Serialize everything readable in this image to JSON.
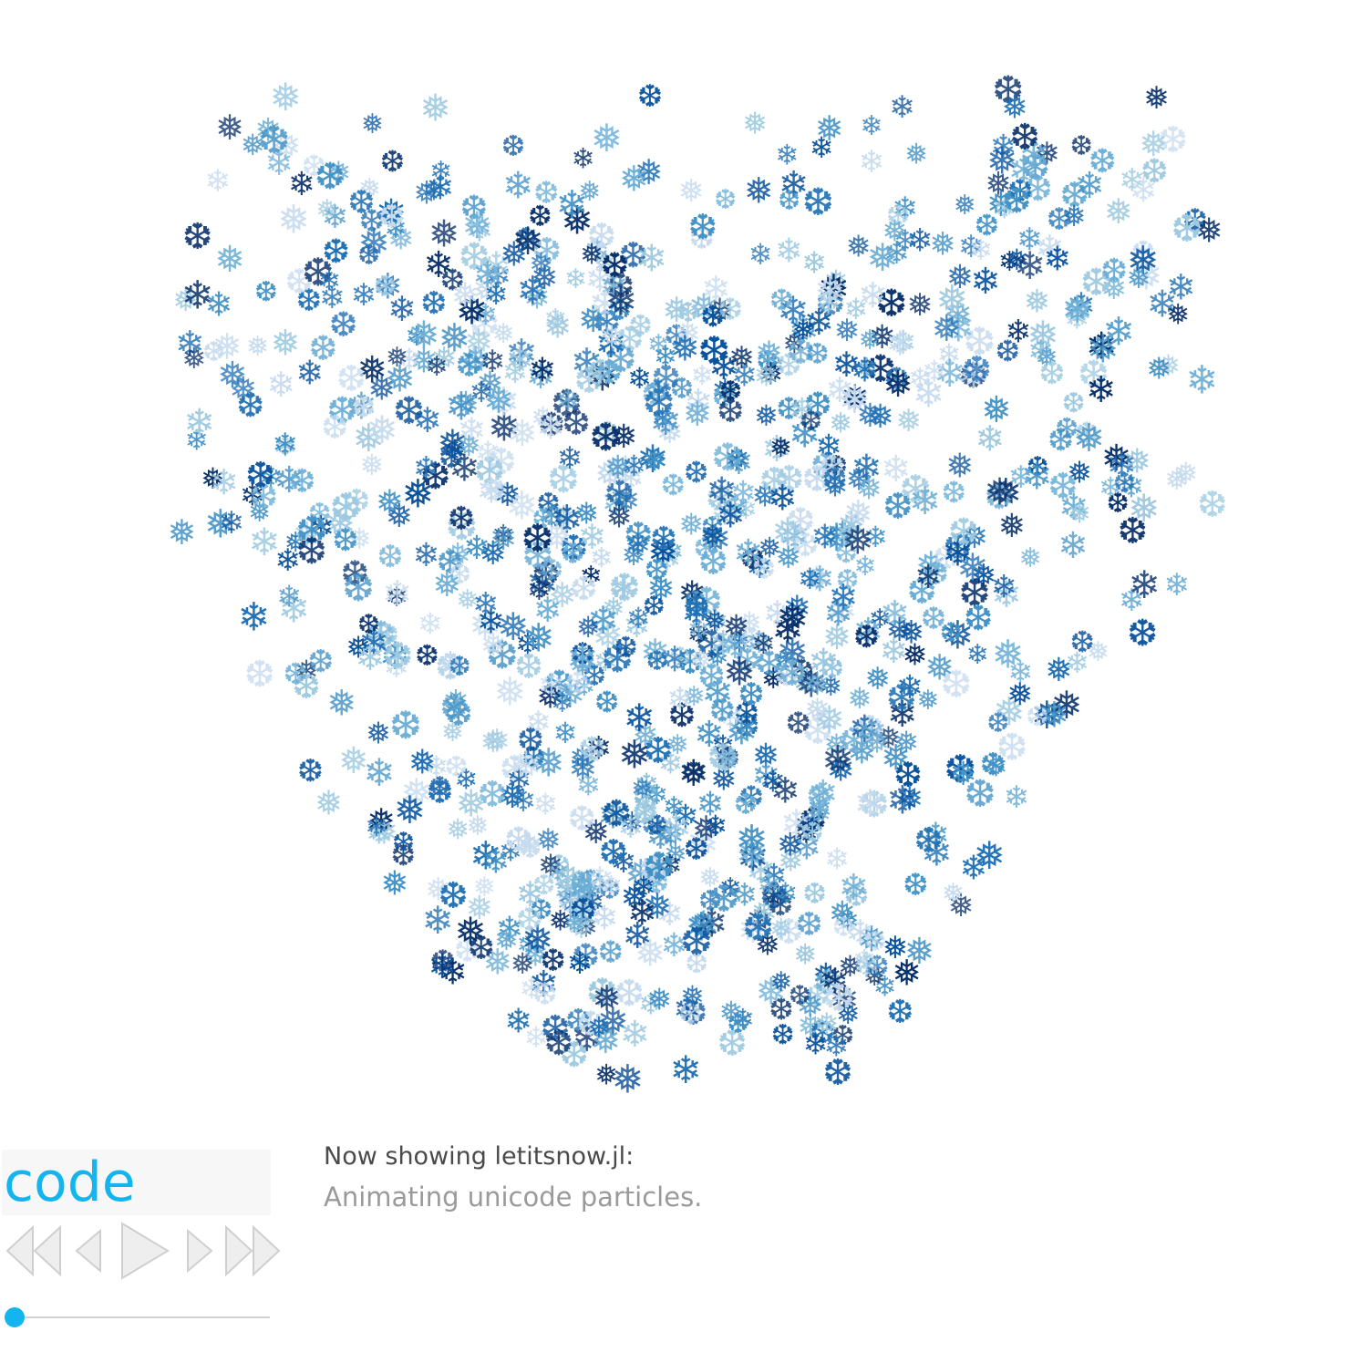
{
  "demo": {
    "code_label": "code",
    "now_showing": "Now showing letitsnow.jl:",
    "subtitle": "Animating unicode particles."
  },
  "particles": {
    "glyphs": [
      "❄",
      "❅",
      "❆"
    ],
    "colors": [
      "#08306b",
      "#08519c",
      "#2171b5",
      "#4292c6",
      "#6baed6",
      "#9ecae1",
      "#c6dbef"
    ]
  },
  "controls": {
    "icons": [
      "skip-to-start-icon",
      "step-back-icon",
      "play-icon",
      "step-forward-icon",
      "skip-to-end-icon"
    ],
    "progress": 0.0,
    "accent": "#14b5ee",
    "icon_color": "#dcdcdc"
  }
}
